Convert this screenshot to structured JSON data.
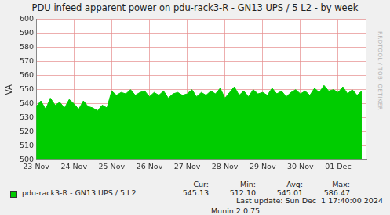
{
  "chart_data": {
    "type": "area",
    "title": "PDU infeed apparent power on pdu-rack3-R - GN13 UPS / 5 L2 - by week",
    "y_label": "VA",
    "x": [
      0,
      3,
      6,
      9,
      12,
      15,
      18,
      21,
      24,
      27,
      30,
      33,
      36,
      39,
      42,
      45,
      48,
      51,
      54,
      57,
      60,
      63,
      66,
      69,
      72,
      75,
      78,
      81,
      84,
      87,
      90,
      93,
      96,
      99,
      102,
      105,
      108,
      111,
      114,
      117,
      120,
      123,
      126,
      129,
      132,
      135,
      138,
      141,
      144,
      147,
      150,
      153,
      156,
      159,
      162,
      165,
      168,
      171,
      174,
      177,
      180,
      183,
      186,
      189,
      192,
      195,
      198,
      201,
      204,
      207
    ],
    "series": [
      {
        "name": "pdu-rack3-R - GN13 UPS / 5 L2",
        "color": "#00cc00",
        "values": [
          538,
          542,
          536,
          544,
          539,
          541,
          537,
          543,
          540,
          536,
          542,
          538,
          537,
          535,
          539,
          537,
          549,
          546,
          548,
          547,
          550,
          546,
          548,
          549,
          545,
          548,
          546,
          549,
          544,
          547,
          548,
          546,
          547,
          550,
          545,
          548,
          546,
          549,
          547,
          551,
          544,
          548,
          552,
          546,
          549,
          545,
          550,
          547,
          548,
          546,
          551,
          547,
          549,
          545,
          548,
          550,
          547,
          549,
          546,
          551,
          548,
          553,
          549,
          550,
          548,
          552,
          547,
          550,
          546,
          549
        ]
      }
    ],
    "xlim": [
      0,
      210
    ],
    "xticks": [
      {
        "value": 0,
        "label": "23 Nov"
      },
      {
        "value": 24,
        "label": "24 Nov"
      },
      {
        "value": 48,
        "label": "25 Nov"
      },
      {
        "value": 72,
        "label": "26 Nov"
      },
      {
        "value": 96,
        "label": "27 Nov"
      },
      {
        "value": 120,
        "label": "28 Nov"
      },
      {
        "value": 144,
        "label": "29 Nov"
      },
      {
        "value": 168,
        "label": "30 Nov"
      },
      {
        "value": 192,
        "label": "01 Dec"
      }
    ],
    "ylim": [
      500,
      600
    ],
    "yticks": [
      500,
      510,
      520,
      530,
      540,
      550,
      560,
      570,
      580,
      590,
      600
    ],
    "grid": true,
    "legend": "bottom",
    "stats": [
      {
        "name": "Cur:",
        "value": 545.13,
        "label": "545.13"
      },
      {
        "name": "Min:",
        "value": 512.1,
        "label": "512.10"
      },
      {
        "name": "Avg:",
        "value": 545.01,
        "label": "545.01"
      },
      {
        "name": "Max:",
        "value": 586.47,
        "label": "586.47"
      }
    ],
    "last_update": "Last update: Sun Dec  1 17:40:00 2024",
    "footer": "Munin 2.0.75",
    "watermark": "RRDTOOL / TOBI OETIKER"
  }
}
